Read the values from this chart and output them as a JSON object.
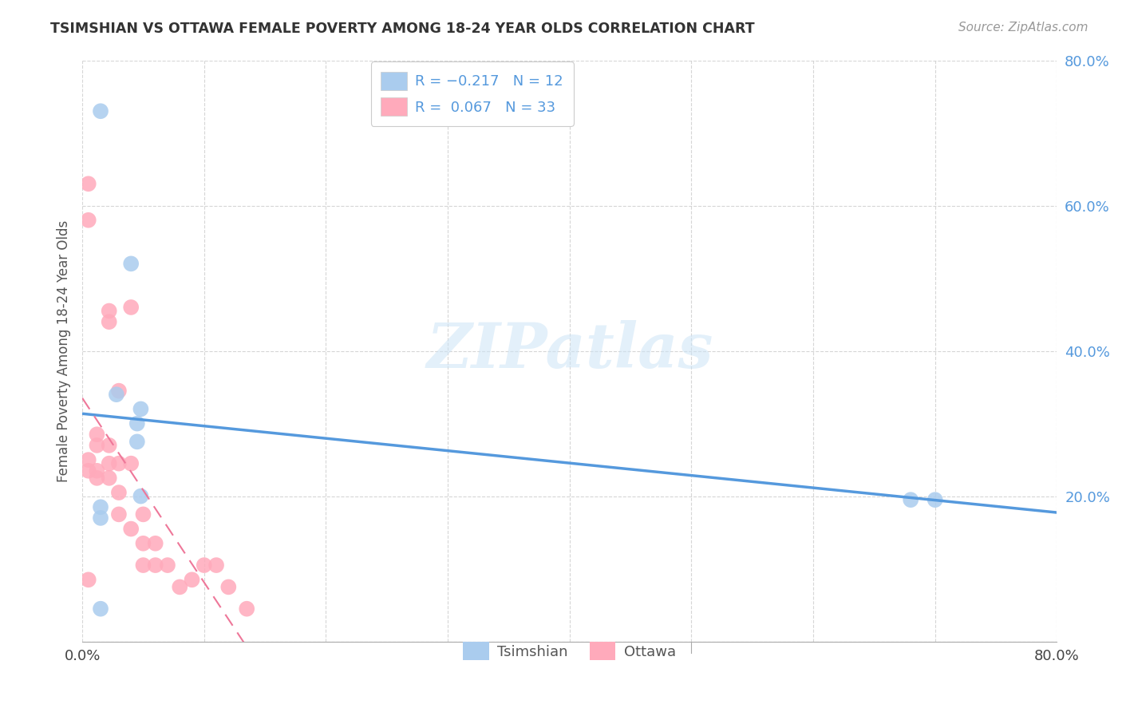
{
  "title": "TSIMSHIAN VS OTTAWA FEMALE POVERTY AMONG 18-24 YEAR OLDS CORRELATION CHART",
  "source": "Source: ZipAtlas.com",
  "ylabel": "Female Poverty Among 18-24 Year Olds",
  "xlim": [
    0.0,
    0.8
  ],
  "ylim": [
    0.0,
    0.8
  ],
  "xticks": [
    0.0,
    0.1,
    0.2,
    0.3,
    0.4,
    0.5,
    0.6,
    0.7,
    0.8
  ],
  "yticks": [
    0.0,
    0.2,
    0.4,
    0.6,
    0.8
  ],
  "legend_labels": [
    "Tsimshian",
    "Ottawa"
  ],
  "tsimshian_color": "#aaccee",
  "ottawa_color": "#ffaabb",
  "tsimshian_line_color": "#5599dd",
  "ottawa_line_color": "#ee7799",
  "R_tsimshian": -0.217,
  "N_tsimshian": 12,
  "R_ottawa": 0.067,
  "N_ottawa": 33,
  "watermark": "ZIPatlas",
  "tsimshian_x": [
    0.015,
    0.015,
    0.04,
    0.045,
    0.045,
    0.048,
    0.048,
    0.015,
    0.015,
    0.028,
    0.68,
    0.7
  ],
  "tsimshian_y": [
    0.73,
    0.045,
    0.52,
    0.3,
    0.275,
    0.32,
    0.2,
    0.185,
    0.17,
    0.34,
    0.195,
    0.195
  ],
  "ottawa_x": [
    0.005,
    0.005,
    0.005,
    0.005,
    0.005,
    0.012,
    0.012,
    0.012,
    0.012,
    0.022,
    0.022,
    0.022,
    0.022,
    0.022,
    0.03,
    0.03,
    0.03,
    0.03,
    0.04,
    0.04,
    0.04,
    0.05,
    0.05,
    0.05,
    0.06,
    0.06,
    0.07,
    0.08,
    0.09,
    0.1,
    0.11,
    0.12,
    0.135
  ],
  "ottawa_y": [
    0.63,
    0.58,
    0.25,
    0.235,
    0.085,
    0.285,
    0.27,
    0.235,
    0.225,
    0.455,
    0.44,
    0.27,
    0.245,
    0.225,
    0.345,
    0.245,
    0.205,
    0.175,
    0.46,
    0.245,
    0.155,
    0.175,
    0.135,
    0.105,
    0.135,
    0.105,
    0.105,
    0.075,
    0.085,
    0.105,
    0.105,
    0.075,
    0.045
  ],
  "tsimshian_line_start_x": 0.0,
  "tsimshian_line_end_x": 0.8,
  "ottawa_line_start_x": 0.0,
  "ottawa_line_end_x": 0.8
}
